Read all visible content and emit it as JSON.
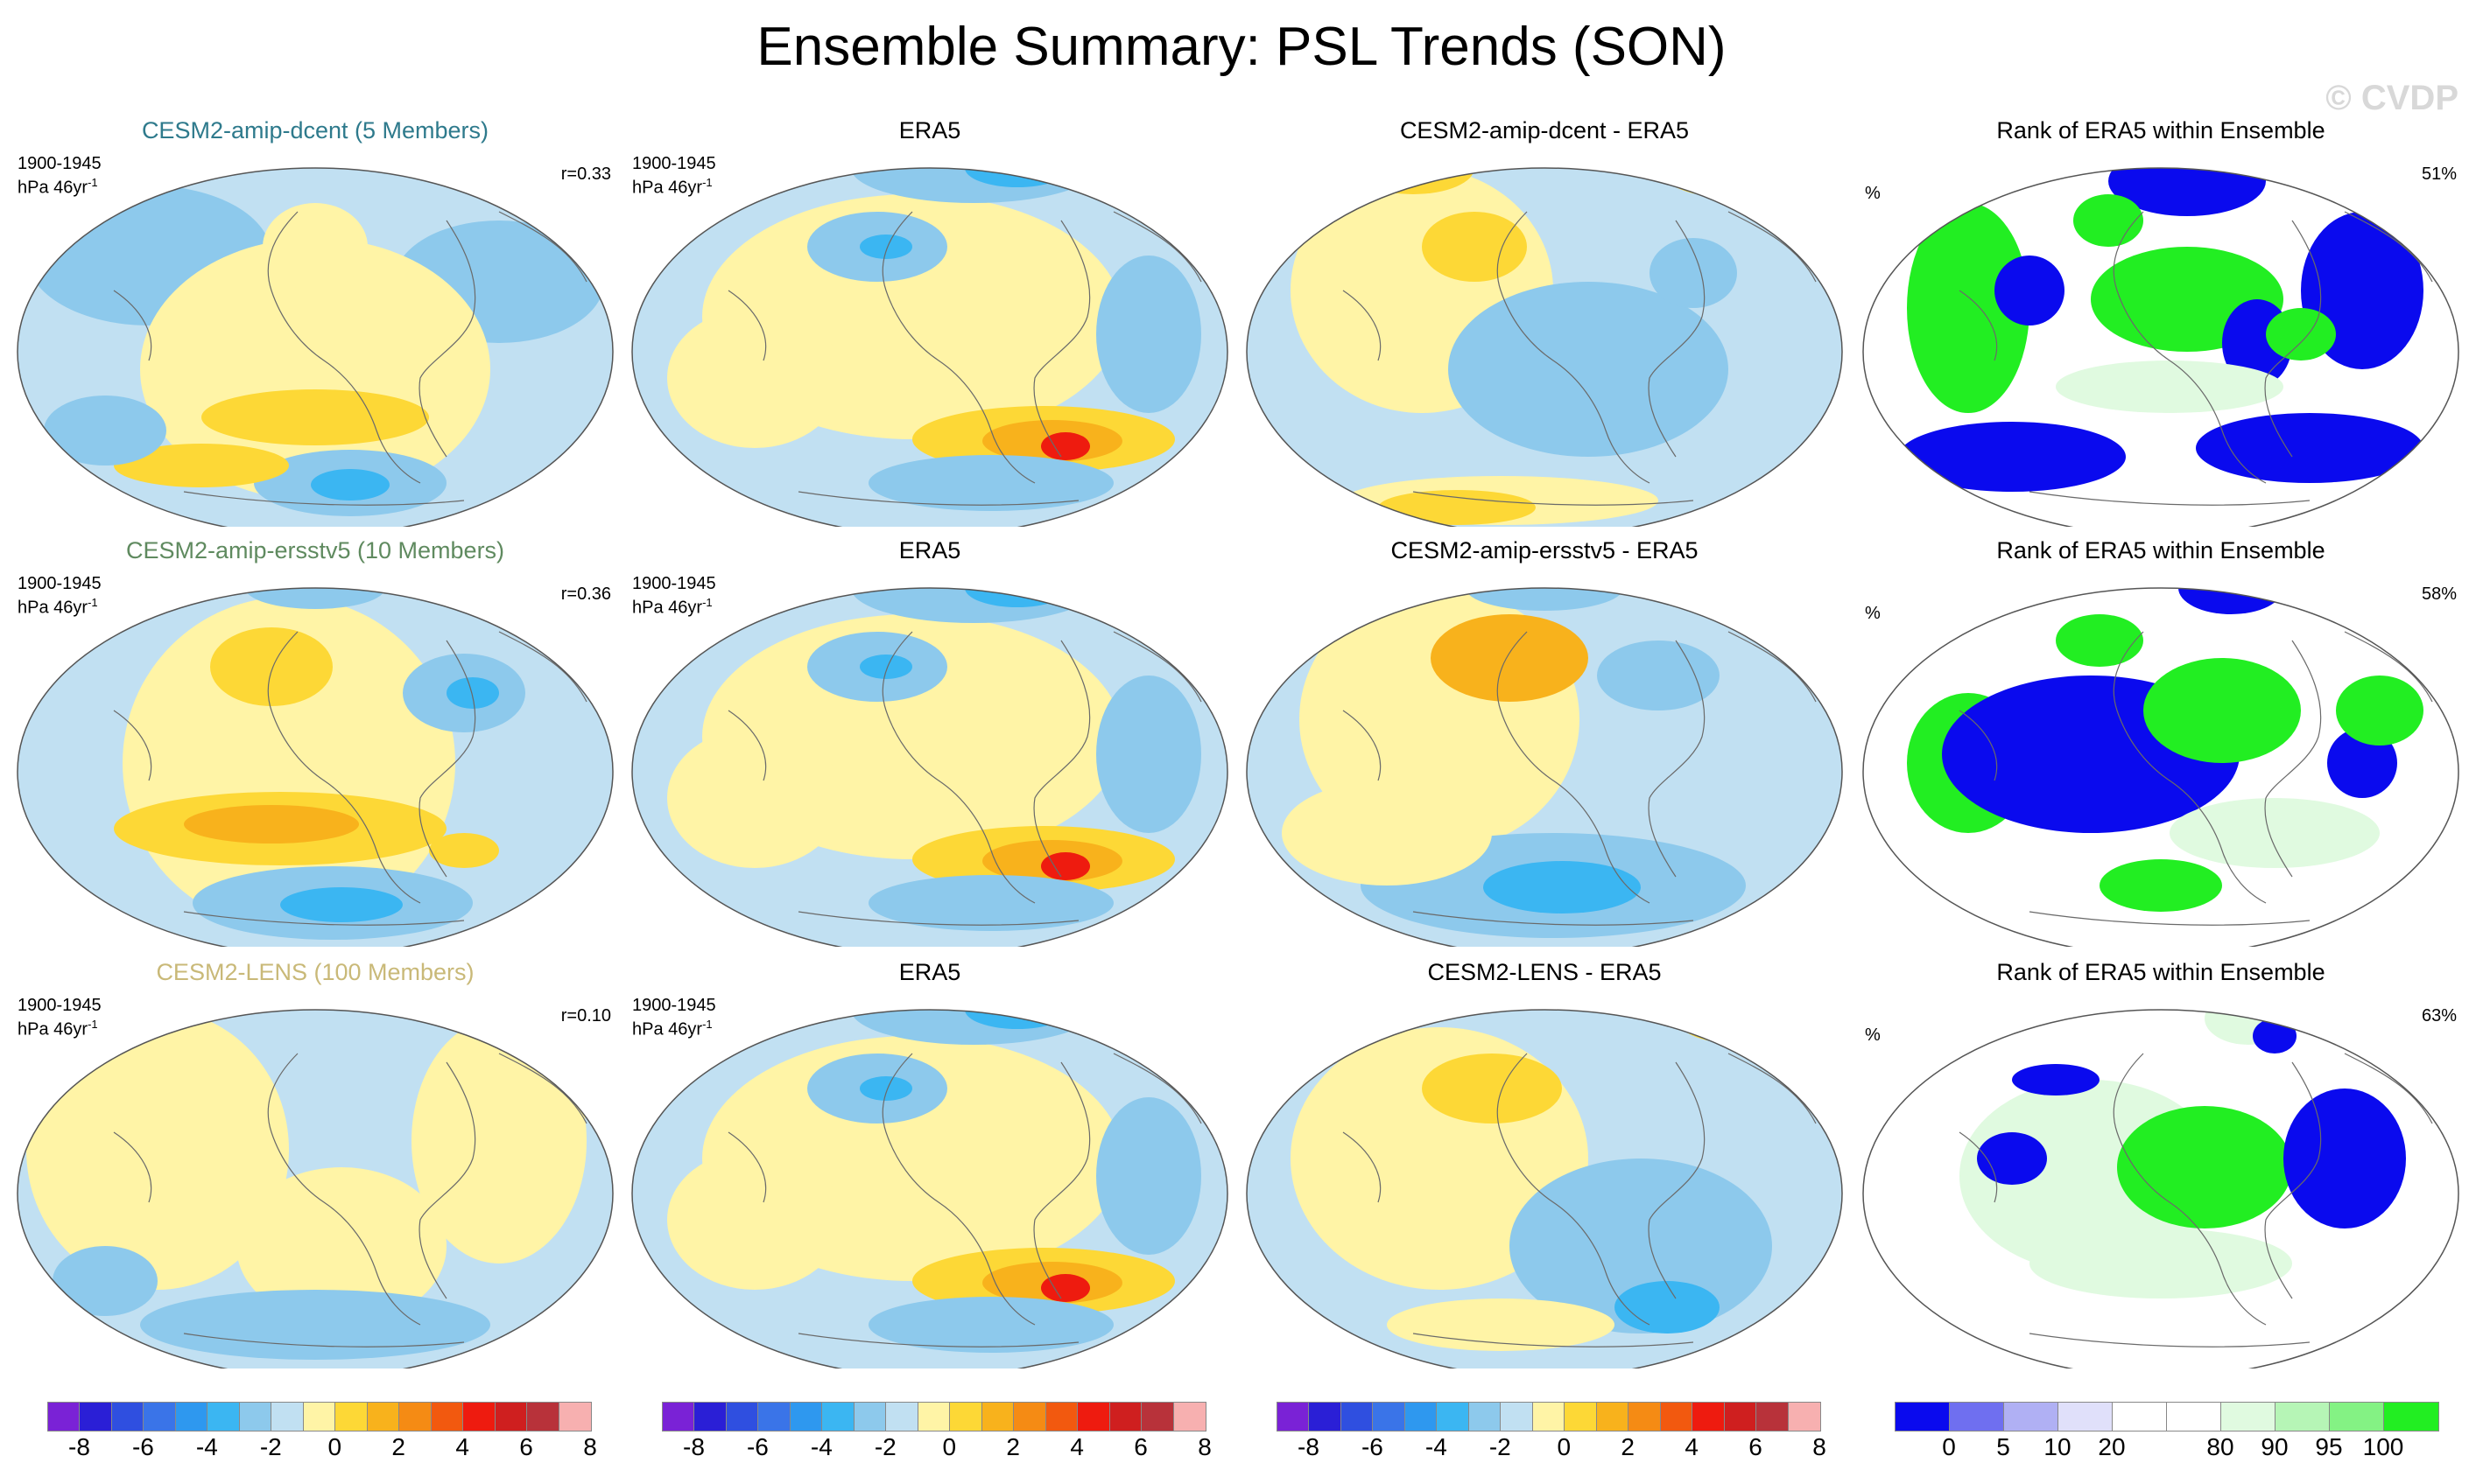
{
  "title": "Ensemble Summary: PSL Trends (SON)",
  "watermark": "© CVDP",
  "rows": [
    {
      "model": {
        "title": "CESM2-amip-dcent (5 Members)",
        "color": "#2e7a8c",
        "period": "1900-1945",
        "units": "hPa 46yr",
        "units_exp": "-1",
        "corr": "r=0.33"
      },
      "obs": {
        "title": "ERA5",
        "period": "1900-1945",
        "units": "hPa 46yr",
        "units_exp": "-1"
      },
      "diff": {
        "title": "CESM2-amip-dcent - ERA5"
      },
      "rank": {
        "title": "Rank of ERA5 within Ensemble",
        "unit": "%",
        "pct": "51%"
      }
    },
    {
      "model": {
        "title": "CESM2-amip-ersstv5 (10 Members)",
        "color": "#5f8a5f",
        "period": "1900-1945",
        "units": "hPa 46yr",
        "units_exp": "-1",
        "corr": "r=0.36"
      },
      "obs": {
        "title": "ERA5",
        "period": "1900-1945",
        "units": "hPa 46yr",
        "units_exp": "-1"
      },
      "diff": {
        "title": "CESM2-amip-ersstv5 - ERA5"
      },
      "rank": {
        "title": "Rank of ERA5 within Ensemble",
        "unit": "%",
        "pct": "58%"
      }
    },
    {
      "model": {
        "title": "CESM2-LENS (100 Members)",
        "color": "#c9b978",
        "period": "1900-1945",
        "units": "hPa 46yr",
        "units_exp": "-1",
        "corr": "r=0.10"
      },
      "obs": {
        "title": "ERA5",
        "period": "1900-1945",
        "units": "hPa 46yr",
        "units_exp": "-1"
      },
      "diff": {
        "title": "CESM2-LENS - ERA5"
      },
      "rank": {
        "title": "Rank of ERA5 within Ensemble",
        "unit": "%",
        "pct": "63%"
      }
    }
  ],
  "trend_colorbar": {
    "colors": [
      "#7a22d6",
      "#2a1fd6",
      "#2f4fe0",
      "#3a74e8",
      "#2e98ef",
      "#3bb6f2",
      "#8dc9ec",
      "#c1e0f2",
      "#fff4a6",
      "#fdd836",
      "#f8b21c",
      "#f58b14",
      "#f2590f",
      "#ee1b0f",
      "#cf1f1f",
      "#b8323a",
      "#f7b0b0"
    ],
    "ticks": [
      "-8",
      "-6",
      "-4",
      "-2",
      "0",
      "2",
      "4",
      "6",
      "8"
    ]
  },
  "rank_colorbar": {
    "colors": [
      "#0a0aee",
      "#6f6ff0",
      "#b0b0f4",
      "#e0e0fa",
      "#ffffff",
      "#ffffff",
      "#e0fae0",
      "#b6f5b6",
      "#84f284",
      "#22ee22"
    ],
    "ticks": [
      "0",
      "5",
      "10",
      "20",
      "80",
      "90",
      "95",
      "100"
    ]
  },
  "map_colors": {
    "ocean_blue": "#c1e0f2",
    "yellow": "#fff4a6",
    "orange": "#fdd836",
    "deep_orange": "#f8b21c",
    "red": "#ee1b0f",
    "blue": "#8dc9ec",
    "deep_blue": "#3bb6f2",
    "rank_blue": "#0a0aee",
    "rank_green": "#22ee22",
    "rank_lightgreen": "#e0fae0"
  }
}
